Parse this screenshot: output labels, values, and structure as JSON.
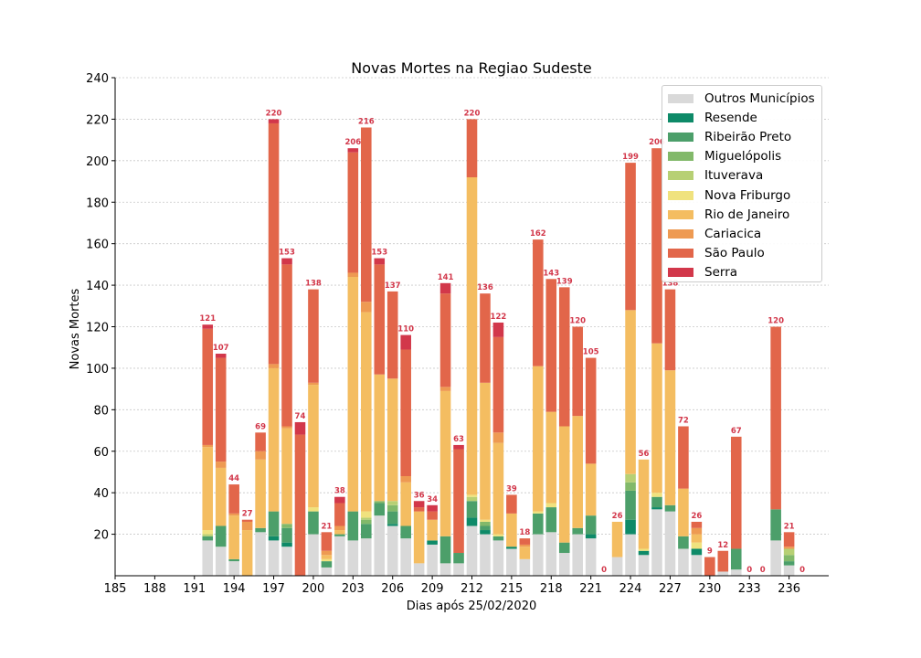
{
  "chart_data": {
    "type": "stacked-bar",
    "title": "Novas Mortes na Regiao Sudeste",
    "xlabel": "Dias após 25/02/2020",
    "ylabel": "Novas Mortes",
    "xlim": [
      185,
      239
    ],
    "ylim": [
      0,
      240
    ],
    "xticks": [
      "185",
      "188",
      "191",
      "194",
      "197",
      "200",
      "203",
      "206",
      "209",
      "212",
      "215",
      "218",
      "221",
      "224",
      "227",
      "230",
      "233",
      "236"
    ],
    "yticks": [
      "20",
      "40",
      "60",
      "80",
      "100",
      "120",
      "140",
      "160",
      "180",
      "200",
      "220",
      "240"
    ],
    "grid": "y",
    "legend_position": "top-right",
    "series": [
      {
        "name": "Outros Municípios",
        "color": "#d9d9d9"
      },
      {
        "name": "Resende",
        "color": "#0e8a68"
      },
      {
        "name": "Ribeirão Preto",
        "color": "#4c9f6a"
      },
      {
        "name": "Miguelópolis",
        "color": "#82b96a"
      },
      {
        "name": "Ituverava",
        "color": "#b7d074"
      },
      {
        "name": "Nova Friburgo",
        "color": "#f0e27e"
      },
      {
        "name": "Rio de Janeiro",
        "color": "#f4bd61"
      },
      {
        "name": "Cariacica",
        "color": "#ee9a52"
      },
      {
        "name": "São Paulo",
        "color": "#e2664a"
      },
      {
        "name": "Serra",
        "color": "#d2374a"
      }
    ],
    "days": [
      192,
      193,
      194,
      195,
      196,
      197,
      198,
      199,
      200,
      201,
      202,
      203,
      204,
      205,
      206,
      207,
      208,
      209,
      210,
      211,
      212,
      213,
      214,
      215,
      216,
      217,
      218,
      219,
      220,
      221,
      222,
      223,
      224,
      225,
      226,
      227,
      228,
      229,
      230,
      231,
      232,
      233,
      234,
      235,
      236,
      237
    ],
    "totals": [
      "121",
      "107",
      "44",
      "27",
      "69",
      "220",
      "153",
      "74",
      "138",
      "21",
      "38",
      "206",
      "216",
      "153",
      "137",
      "110",
      "36",
      "34",
      "141",
      "63",
      "220",
      "136",
      "122",
      "39",
      "18",
      "162",
      "143",
      "139",
      "120",
      "105",
      "0",
      "26",
      "199",
      "56",
      "206",
      "138",
      "72",
      "26",
      "9",
      "12",
      "67",
      "0",
      "0",
      "120",
      "21",
      "0"
    ],
    "values": [
      [
        17,
        0,
        2,
        0,
        1,
        2,
        40,
        1,
        56,
        2
      ],
      [
        14,
        0,
        10,
        0,
        0,
        0,
        28,
        3,
        50,
        2
      ],
      [
        7,
        0,
        1,
        0,
        0,
        0,
        21,
        1,
        14,
        0
      ],
      [
        0,
        0,
        0,
        0,
        0,
        0,
        22,
        4,
        1,
        0
      ],
      [
        21,
        0,
        2,
        0,
        0,
        0,
        33,
        4,
        9,
        0
      ],
      [
        17,
        2,
        12,
        0,
        0,
        0,
        69,
        2,
        116,
        2
      ],
      [
        14,
        2,
        7,
        2,
        0,
        0,
        46,
        1,
        78,
        3
      ],
      [
        0,
        0,
        0,
        0,
        0,
        0,
        0,
        0,
        68,
        6
      ],
      [
        20,
        0,
        11,
        0,
        0,
        2,
        59,
        1,
        45,
        0
      ],
      [
        4,
        0,
        3,
        0,
        0,
        1,
        2,
        2,
        9,
        0
      ],
      [
        19,
        0,
        1,
        0,
        0,
        0,
        2,
        2,
        11,
        3
      ],
      [
        17,
        0,
        14,
        0,
        0,
        0,
        113,
        2,
        58,
        2
      ],
      [
        18,
        0,
        7,
        2,
        1,
        3,
        96,
        5,
        84,
        0
      ],
      [
        29,
        0,
        6,
        1,
        0,
        0,
        61,
        0,
        53,
        3
      ],
      [
        24,
        1,
        6,
        3,
        2,
        0,
        59,
        0,
        42,
        0
      ],
      [
        18,
        0,
        6,
        0,
        0,
        0,
        21,
        3,
        61,
        7
      ],
      [
        6,
        0,
        0,
        0,
        0,
        0,
        25,
        0,
        2,
        3
      ],
      [
        15,
        2,
        0,
        0,
        0,
        0,
        10,
        0,
        4,
        3
      ],
      [
        6,
        0,
        13,
        0,
        0,
        0,
        70,
        2,
        45,
        5
      ],
      [
        6,
        0,
        5,
        0,
        0,
        0,
        0,
        0,
        50,
        2
      ],
      [
        24,
        4,
        8,
        0,
        2,
        1,
        153,
        0,
        28,
        0
      ],
      [
        20,
        2,
        2,
        2,
        0,
        1,
        66,
        0,
        43,
        0
      ],
      [
        17,
        0,
        2,
        0,
        0,
        1,
        44,
        5,
        46,
        7
      ],
      [
        13,
        1,
        0,
        0,
        0,
        0,
        16,
        0,
        9,
        0
      ],
      [
        8,
        0,
        0,
        0,
        0,
        0,
        6,
        1,
        3,
        0
      ],
      [
        20,
        0,
        10,
        0,
        0,
        1,
        70,
        0,
        61,
        0
      ],
      [
        21,
        0,
        12,
        0,
        0,
        2,
        44,
        0,
        64,
        0
      ],
      [
        11,
        0,
        5,
        0,
        0,
        0,
        56,
        0,
        67,
        0
      ],
      [
        20,
        0,
        3,
        0,
        0,
        0,
        54,
        0,
        43,
        0
      ],
      [
        18,
        2,
        9,
        0,
        0,
        0,
        25,
        0,
        51,
        0
      ],
      [
        0,
        0,
        0,
        0,
        0,
        0,
        0,
        0,
        0,
        0
      ],
      [
        9,
        0,
        0,
        0,
        0,
        0,
        17,
        0,
        0,
        0
      ],
      [
        20,
        7,
        14,
        4,
        4,
        0,
        79,
        0,
        71,
        0
      ],
      [
        10,
        2,
        0,
        0,
        0,
        1,
        43,
        0,
        0,
        0
      ],
      [
        32,
        1,
        5,
        0,
        0,
        2,
        72,
        0,
        94,
        0
      ],
      [
        31,
        0,
        3,
        0,
        0,
        0,
        65,
        0,
        39,
        0
      ],
      [
        13,
        0,
        6,
        0,
        0,
        0,
        23,
        0,
        30,
        0
      ],
      [
        10,
        3,
        0,
        0,
        0,
        3,
        4,
        3,
        3,
        0
      ],
      [
        0,
        0,
        0,
        0,
        0,
        0,
        0,
        0,
        9,
        0
      ],
      [
        2,
        0,
        0,
        0,
        0,
        0,
        0,
        0,
        10,
        0
      ],
      [
        3,
        0,
        10,
        0,
        0,
        0,
        0,
        0,
        54,
        0
      ],
      [
        0,
        0,
        0,
        0,
        0,
        0,
        0,
        0,
        0,
        0
      ],
      [
        0,
        0,
        0,
        0,
        0,
        0,
        0,
        0,
        0,
        0
      ],
      [
        17,
        0,
        15,
        0,
        0,
        0,
        0,
        0,
        88,
        0
      ],
      [
        5,
        0,
        2,
        3,
        3,
        0,
        0,
        1,
        7,
        0
      ],
      [
        0,
        0,
        0,
        0,
        0,
        0,
        0,
        0,
        0,
        0
      ]
    ]
  }
}
